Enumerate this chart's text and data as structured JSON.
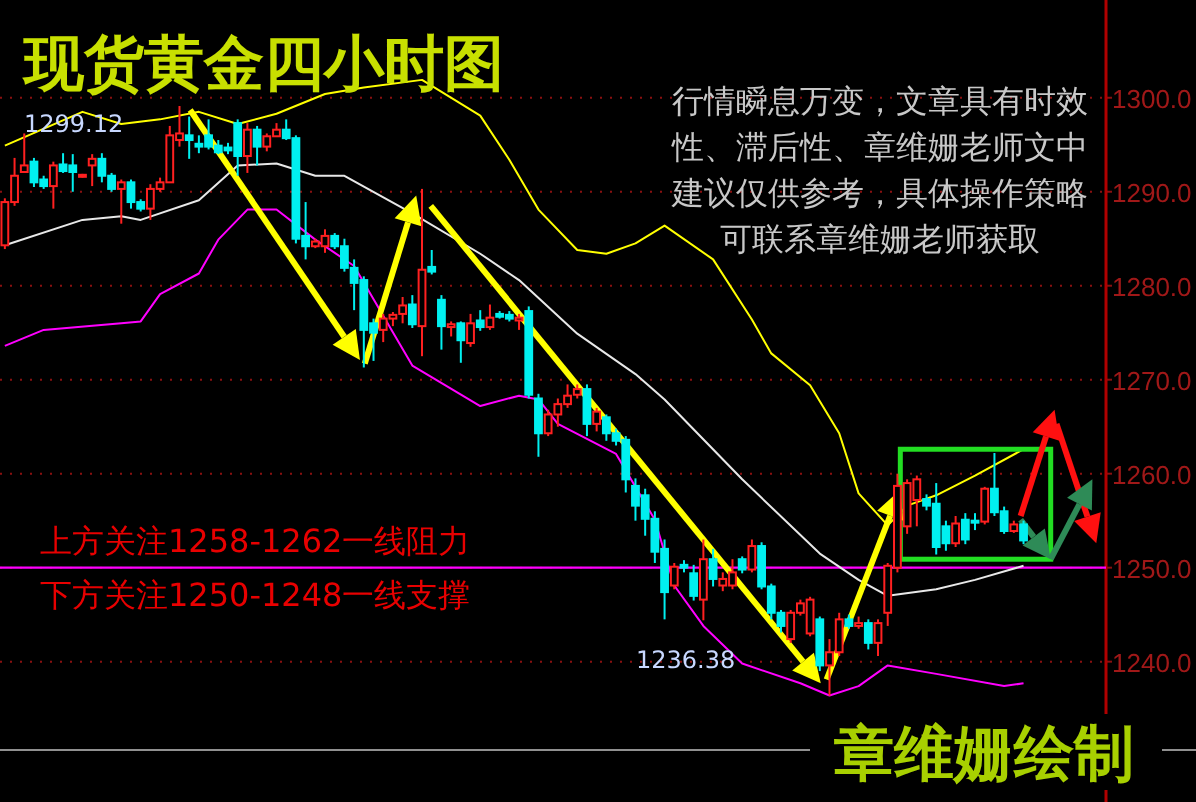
{
  "chart_data": {
    "type": "candlestick",
    "title": "现货黄金四小时图",
    "categories": [
      null,
      null,
      null,
      null,
      null,
      null,
      null,
      null,
      null,
      null,
      null,
      null,
      null,
      null,
      null,
      null,
      null,
      null,
      null,
      null,
      null,
      null,
      null,
      null,
      null,
      null,
      null,
      null,
      null,
      null,
      null,
      null,
      null,
      null,
      null,
      null,
      null,
      null,
      null,
      null,
      null,
      null,
      null,
      null,
      null,
      null,
      null,
      null,
      null,
      null,
      null,
      null,
      null,
      null,
      null,
      null,
      null,
      null,
      null,
      null,
      null,
      null,
      null,
      null,
      null,
      null,
      null,
      null,
      null,
      null,
      null,
      null,
      null,
      null,
      null,
      null,
      null,
      null,
      null,
      null,
      null,
      null,
      null,
      null,
      null,
      null,
      null,
      null,
      null,
      null,
      null,
      null,
      null,
      null,
      null,
      null,
      null,
      null,
      null,
      null,
      null,
      null,
      null,
      null,
      null,
      null
    ],
    "ohlc": [
      [
        1284.3,
        1289.3,
        1283.9,
        1288.9
      ],
      [
        1288.9,
        1293.6,
        1288.5,
        1291.7
      ],
      [
        1292.1,
        1296.2,
        1292.1,
        1292.8
      ],
      [
        1293.2,
        1293.6,
        1290.5,
        1291.0
      ],
      [
        1291.3,
        1291.7,
        1290.3,
        1290.6
      ],
      [
        1290.6,
        1293.2,
        1288.2,
        1292.8
      ],
      [
        1292.9,
        1294.1,
        1292.0,
        1292.2
      ],
      [
        1292.8,
        1294.0,
        1290.0,
        1292.1
      ],
      [
        1291.6,
        1291.9,
        1291.5,
        1291.8
      ],
      [
        1292.8,
        1294.0,
        1290.6,
        1293.5
      ],
      [
        1293.5,
        1294.1,
        1291.0,
        1291.7
      ],
      [
        1291.7,
        1292.0,
        1290.0,
        1290.3
      ],
      [
        1290.3,
        1291.3,
        1286.6,
        1291.0
      ],
      [
        1291.0,
        1291.3,
        1288.2,
        1288.9
      ],
      [
        1288.9,
        1289.2,
        1287.9,
        1288.2
      ],
      [
        1288.2,
        1290.8,
        1287.0,
        1290.3
      ],
      [
        1290.3,
        1291.5,
        1290.0,
        1291.0
      ],
      [
        1291.0,
        1297.0,
        1291.0,
        1296.0
      ],
      [
        1295.5,
        1299.12,
        1294.8,
        1296.2
      ],
      [
        1296.0,
        1298.0,
        1293.5,
        1295.5
      ],
      [
        1295.1,
        1296.0,
        1294.1,
        1294.8
      ],
      [
        1296.0,
        1297.7,
        1294.5,
        1294.8
      ],
      [
        1294.9,
        1295.5,
        1294.0,
        1294.2
      ],
      [
        1294.7,
        1295.2,
        1294.0,
        1294.4
      ],
      [
        1297.3,
        1297.7,
        1291.7,
        1293.8
      ],
      [
        1293.8,
        1297.3,
        1292.0,
        1296.6
      ],
      [
        1296.6,
        1297.0,
        1292.8,
        1294.8
      ],
      [
        1294.8,
        1296.2,
        1294.3,
        1295.9
      ],
      [
        1295.9,
        1297.3,
        1295.9,
        1296.6
      ],
      [
        1296.6,
        1297.7,
        1295.5,
        1295.7
      ],
      [
        1295.7,
        1296.0,
        1284.5,
        1285.0
      ],
      [
        1285.3,
        1288.9,
        1282.8,
        1284.2
      ],
      [
        1284.2,
        1285.0,
        1284.0,
        1284.7
      ],
      [
        1284.2,
        1286.0,
        1283.5,
        1285.3
      ],
      [
        1285.3,
        1285.6,
        1283.9,
        1284.2
      ],
      [
        1284.2,
        1285.0,
        1281.5,
        1281.9
      ],
      [
        1281.9,
        1282.8,
        1277.4,
        1280.3
      ],
      [
        1280.6,
        1281.0,
        1271.3,
        1275.3
      ],
      [
        1276.0,
        1276.5,
        1272.0,
        1275.0
      ],
      [
        1275.3,
        1277.0,
        1274.0,
        1276.5
      ],
      [
        1276.5,
        1277.2,
        1275.7,
        1276.9
      ],
      [
        1277.0,
        1278.8,
        1276.0,
        1277.9
      ],
      [
        1278.0,
        1279.0,
        1275.5,
        1275.9
      ],
      [
        1275.7,
        1290.3,
        1272.5,
        1281.7
      ],
      [
        1282.0,
        1283.8,
        1281.2,
        1281.5
      ],
      [
        1278.5,
        1279.0,
        1273.2,
        1275.7
      ],
      [
        1275.6,
        1276.2,
        1274.6,
        1275.9
      ],
      [
        1276.0,
        1276.2,
        1271.8,
        1274.2
      ],
      [
        1273.9,
        1277.0,
        1273.5,
        1276.0
      ],
      [
        1276.3,
        1277.4,
        1275.2,
        1275.6
      ],
      [
        1275.6,
        1278.0,
        1275.3,
        1276.6
      ],
      [
        1277.0,
        1277.3,
        1276.5,
        1276.7
      ],
      [
        1276.9,
        1277.3,
        1276.2,
        1276.5
      ],
      [
        1276.3,
        1277.0,
        1275.3,
        1276.6
      ],
      [
        1277.3,
        1277.8,
        1268.0,
        1268.4
      ],
      [
        1268.0,
        1268.5,
        1261.8,
        1264.3
      ],
      [
        1264.3,
        1266.8,
        1264.0,
        1266.3
      ],
      [
        1266.3,
        1268.0,
        1265.0,
        1267.4
      ],
      [
        1267.4,
        1269.5,
        1267.0,
        1268.3
      ],
      [
        1268.4,
        1269.5,
        1268.0,
        1269.0
      ],
      [
        1269.0,
        1269.5,
        1264.0,
        1265.3
      ],
      [
        1265.3,
        1267.0,
        1264.5,
        1266.6
      ],
      [
        1266.0,
        1266.3,
        1263.5,
        1264.3
      ],
      [
        1264.3,
        1264.8,
        1263.0,
        1263.5
      ],
      [
        1263.6,
        1264.0,
        1258.0,
        1259.4
      ],
      [
        1258.7,
        1259.5,
        1255.0,
        1256.6
      ],
      [
        1257.7,
        1258.4,
        1253.4,
        1255.2
      ],
      [
        1255.2,
        1256.0,
        1250.5,
        1251.7
      ],
      [
        1252.0,
        1253.0,
        1244.5,
        1247.4
      ],
      [
        1248.1,
        1250.5,
        1247.7,
        1250.1
      ],
      [
        1250.3,
        1250.8,
        1249.5,
        1250.0
      ],
      [
        1249.4,
        1250.3,
        1246.5,
        1247.0
      ],
      [
        1246.6,
        1253.0,
        1244.4,
        1250.9
      ],
      [
        1250.9,
        1252.0,
        1248.0,
        1248.8
      ],
      [
        1248.1,
        1249.5,
        1247.5,
        1248.8
      ],
      [
        1248.1,
        1250.9,
        1247.7,
        1249.5
      ],
      [
        1250.9,
        1251.2,
        1249.4,
        1249.8
      ],
      [
        1249.8,
        1253.0,
        1249.5,
        1252.3
      ],
      [
        1252.3,
        1252.7,
        1247.7,
        1248.0
      ],
      [
        1248.0,
        1248.3,
        1244.5,
        1245.2
      ],
      [
        1245.2,
        1245.5,
        1243.1,
        1243.8
      ],
      [
        1242.4,
        1245.5,
        1242.0,
        1245.2
      ],
      [
        1245.2,
        1246.6,
        1244.9,
        1246.2
      ],
      [
        1243.0,
        1246.9,
        1242.7,
        1246.6
      ],
      [
        1244.5,
        1244.8,
        1239.0,
        1239.6
      ],
      [
        1239.6,
        1242.4,
        1236.38,
        1241.0
      ],
      [
        1241.0,
        1245.2,
        1240.6,
        1244.5
      ],
      [
        1244.5,
        1245.0,
        1243.5,
        1243.8
      ],
      [
        1243.8,
        1244.8,
        1243.5,
        1244.1
      ],
      [
        1244.1,
        1244.5,
        1241.3,
        1242.0
      ],
      [
        1242.0,
        1244.5,
        1240.6,
        1244.1
      ],
      [
        1245.2,
        1250.5,
        1243.8,
        1250.2
      ],
      [
        1250.0,
        1260.0,
        1249.5,
        1258.7
      ],
      [
        1254.4,
        1259.4,
        1253.6,
        1259.0
      ],
      [
        1257.2,
        1259.8,
        1254.4,
        1259.4
      ],
      [
        1257.3,
        1257.8,
        1256.1,
        1256.6
      ],
      [
        1256.8,
        1259.0,
        1251.4,
        1252.2
      ],
      [
        1254.4,
        1255.0,
        1251.8,
        1252.6
      ],
      [
        1252.6,
        1255.5,
        1252.2,
        1254.7
      ],
      [
        1255.1,
        1255.8,
        1252.5,
        1253.0
      ],
      [
        1255.0,
        1255.8,
        1254.0,
        1254.9
      ],
      [
        1254.9,
        1258.6,
        1254.6,
        1258.4
      ],
      [
        1258.4,
        1262.2,
        1255.5,
        1255.9
      ],
      [
        1256.0,
        1256.5,
        1253.6,
        1253.9
      ],
      [
        1253.9,
        1255.0,
        1253.7,
        1254.6
      ],
      [
        1254.6,
        1255.0,
        1252.5,
        1252.9
      ]
    ],
    "series": [
      {
        "type": "line",
        "color": "#ffff00",
        "values": [
          1294.9,
          null,
          null,
          null,
          null,
          null,
          null,
          null,
          1298.5,
          null,
          null,
          null,
          1297.2,
          null,
          null,
          null,
          1297.7,
          null,
          null,
          null,
          1298.5,
          null,
          null,
          null,
          1297.2,
          null,
          null,
          null,
          1298.3,
          null,
          null,
          null,
          null,
          1300.4,
          null,
          null,
          null,
          1301.1,
          null,
          null,
          null,
          null,
          null,
          1301.9,
          null,
          null,
          null,
          null,
          null,
          1298.1,
          null,
          null,
          1293.4,
          null,
          null,
          1288.1,
          null,
          null,
          null,
          1283.8,
          null,
          null,
          1283.4,
          null,
          null,
          1284.5,
          null,
          null,
          1286.4,
          null,
          null,
          null,
          null,
          1282.8,
          null,
          null,
          null,
          1276.4,
          null,
          1272.8,
          null,
          null,
          null,
          1269.4,
          null,
          null,
          1264.3,
          null,
          1257.9,
          null,
          null,
          1254.5,
          null,
          1256.6,
          null,
          null,
          1257.7,
          null,
          null,
          null,
          1259.8,
          null,
          null,
          null,
          null,
          1262.6
        ]
      },
      {
        "type": "line",
        "color": "#e8e8e8",
        "values": [
          1284.3,
          null,
          null,
          null,
          null,
          null,
          null,
          null,
          1287.0,
          null,
          null,
          null,
          1287.4,
          null,
          1287.0,
          null,
          null,
          null,
          null,
          null,
          1289.1,
          null,
          null,
          null,
          1292.8,
          null,
          null,
          null,
          1293.0,
          null,
          null,
          null,
          1291.7,
          null,
          null,
          1291.7,
          null,
          null,
          null,
          null,
          null,
          null,
          1287.7,
          null,
          null,
          null,
          null,
          null,
          null,
          1283.4,
          null,
          null,
          null,
          1280.6,
          null,
          null,
          null,
          null,
          null,
          1274.9,
          null,
          null,
          null,
          null,
          null,
          1270.6,
          null,
          null,
          1267.9,
          null,
          null,
          null,
          null,
          null,
          null,
          null,
          1259.4,
          null,
          null,
          null,
          null,
          null,
          null,
          null,
          1251.5,
          null,
          null,
          null,
          1248.7,
          null,
          null,
          1247.0,
          null,
          null,
          null,
          null,
          1247.7,
          null,
          null,
          null,
          1248.7,
          null,
          null,
          null,
          null,
          1250.2
        ]
      },
      {
        "type": "line",
        "color": "#ff00ff",
        "values": [
          1273.6,
          null,
          null,
          null,
          1275.3,
          null,
          null,
          null,
          null,
          null,
          null,
          null,
          1276.0,
          null,
          1276.2,
          null,
          1279.1,
          null,
          null,
          null,
          1281.3,
          null,
          1284.9,
          null,
          null,
          1288.1,
          null,
          null,
          1288.1,
          null,
          null,
          null,
          1284.9,
          null,
          null,
          null,
          1282.1,
          null,
          null,
          null,
          null,
          null,
          1271.5,
          null,
          null,
          null,
          null,
          null,
          null,
          1267.2,
          null,
          null,
          null,
          1268.3,
          null,
          1267.9,
          null,
          1265.3,
          null,
          null,
          null,
          null,
          null,
          1262.1,
          null,
          null,
          null,
          1255.1,
          null,
          1248.1,
          null,
          null,
          1243.8,
          null,
          null,
          null,
          1239.8,
          null,
          null,
          null,
          null,
          null,
          1237.7,
          null,
          null,
          1236.4,
          null,
          null,
          1237.4,
          null,
          null,
          1239.6,
          null,
          null,
          null,
          null,
          1238.7,
          null,
          null,
          null,
          null,
          null,
          null,
          1237.4,
          null,
          1237.7
        ]
      }
    ],
    "ylim": [
      1230.6,
      1310.4
    ],
    "yticks": [
      {
        "value": 1240,
        "label": "1240.0"
      },
      {
        "value": 1250,
        "label": "1250.0"
      },
      {
        "value": 1260,
        "label": "1260.0"
      },
      {
        "value": 1270,
        "label": "1270.0"
      },
      {
        "value": 1280,
        "label": "1280.0"
      },
      {
        "value": 1290,
        "label": "1290.0"
      },
      {
        "value": 1300,
        "label": "1300.0"
      }
    ],
    "grid": "y",
    "ref_lines": [
      {
        "axis": "y",
        "value": 1250,
        "color": "#ff00ff"
      }
    ],
    "annotations": [
      "1299.12",
      "1236.38",
      "上方关注1258-1262一线阻力",
      "下方关注1250-1248一线支撑",
      "行情瞬息万变，文章具有时效性、滞后性、章维姗老师文中建议仅供参考，具体操作策略可联系章维姗老师获取",
      "章维姗绘制"
    ]
  }
}
